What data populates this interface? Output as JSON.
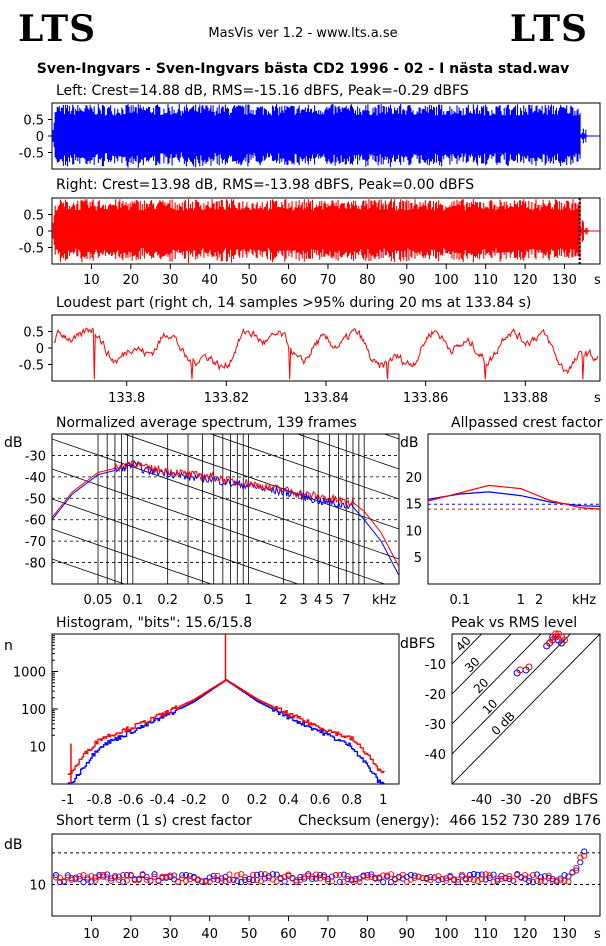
{
  "header": {
    "logo_left": "LTS",
    "logo_right": "LTS",
    "version": "MasVis ver 1.2 - www.lts.a.se",
    "file_title": "Sven-Ingvars - Sven-Ingvars bästa CD2 1996 - 02 - I nästa stad.wav"
  },
  "colors": {
    "left": "#0000ff",
    "right": "#ff0000"
  },
  "chart_data": [
    {
      "type": "line",
      "title": "Left: Crest=14.88 dB, RMS=-15.16 dBFS, Peak=-0.29 dBFS",
      "channel": "left",
      "ylim": [
        -1,
        1
      ],
      "yticks": [
        "0.5",
        "0",
        "-0.5"
      ],
      "xlim": [
        0,
        139
      ],
      "envelope_peak": 0.97
    },
    {
      "type": "line",
      "title": "Right: Crest=13.98 dB, RMS=-13.98 dBFS, Peak=0.00 dBFS",
      "channel": "right",
      "ylim": [
        -1,
        1
      ],
      "yticks": [
        "0.5",
        "0",
        "-0.5"
      ],
      "xlim": [
        0,
        139
      ],
      "xticks": [
        "10",
        "20",
        "30",
        "40",
        "50",
        "60",
        "70",
        "80",
        "90",
        "100",
        "110",
        "120",
        "130"
      ],
      "xunit": "s",
      "loudest_marker_s": 133.84
    },
    {
      "type": "line",
      "title": "Loudest part (right ch, 14 samples >95% during 20 ms at 133.84 s)",
      "ylim": [
        -1,
        1
      ],
      "yticks": [
        "0.5",
        "0",
        "-0.5"
      ],
      "xlim": [
        133.785,
        133.895
      ],
      "xticks": [
        "133.8",
        "133.82",
        "133.84",
        "133.86",
        "133.88"
      ],
      "xunit": "s"
    },
    {
      "type": "line",
      "title": "Normalized average spectrum, 139 frames",
      "ylabel": "dB",
      "xscale": "log",
      "xlim": [
        0.02,
        20
      ],
      "ylim": [
        -90,
        -20
      ],
      "yticks": [
        "-30",
        "-40",
        "-50",
        "-60",
        "-70",
        "-80"
      ],
      "xticks": [
        "0.05",
        "0.1",
        "0.2",
        "0.5",
        "1",
        "2",
        "3",
        "4",
        "5",
        "7"
      ],
      "xunit": "kHz",
      "series": [
        {
          "channel": "left",
          "x": [
            0.02,
            0.03,
            0.05,
            0.07,
            0.09,
            0.1,
            0.13,
            0.2,
            0.3,
            0.5,
            0.7,
            1,
            1.5,
            2,
            3,
            4,
            5,
            6,
            7,
            8,
            10,
            14,
            20
          ],
          "y": [
            -60,
            -48,
            -39,
            -37,
            -35,
            -34,
            -37,
            -38,
            -40,
            -41,
            -43,
            -44,
            -46,
            -47,
            -49,
            -51,
            -52,
            -53,
            -53,
            -54,
            -60,
            -70,
            -86
          ]
        },
        {
          "channel": "right",
          "x": [
            0.02,
            0.03,
            0.05,
            0.07,
            0.09,
            0.1,
            0.13,
            0.2,
            0.3,
            0.5,
            0.7,
            1,
            1.5,
            2,
            3,
            4,
            5,
            6,
            7,
            8,
            10,
            14,
            20
          ],
          "y": [
            -59,
            -47,
            -38,
            -36,
            -34,
            -33,
            -36,
            -37,
            -39,
            -40,
            -42,
            -43,
            -45,
            -46,
            -48,
            -49,
            -50,
            -51,
            -52,
            -52,
            -56,
            -66,
            -82
          ]
        }
      ]
    },
    {
      "type": "line",
      "title": "Allpassed crest factor",
      "ylabel": "dB",
      "xscale": "log",
      "xlim": [
        0.03,
        20
      ],
      "ylim": [
        0,
        28
      ],
      "yticks": [
        "20",
        "15",
        "10",
        "5"
      ],
      "xticks": [
        "0.1",
        "1",
        "2"
      ],
      "xunit": "kHz",
      "series": [
        {
          "channel": "left",
          "x": [
            0.03,
            0.1,
            0.3,
            1,
            3,
            10,
            20
          ],
          "y": [
            15.8,
            16.8,
            17.2,
            16.5,
            15.3,
            14.6,
            14.5
          ]
        },
        {
          "channel": "right",
          "x": [
            0.03,
            0.1,
            0.3,
            1,
            3,
            10,
            20
          ],
          "y": [
            15.5,
            17,
            18.4,
            17.8,
            15.6,
            14.2,
            14.0
          ]
        }
      ],
      "reference_lines": {
        "left": 14.88,
        "right": 13.98
      }
    },
    {
      "type": "line",
      "title": "Histogram, \"bits\": 15.6/15.8",
      "ylabel": "n",
      "yscale": "log",
      "xlim": [
        -1.1,
        1.1
      ],
      "ylim": [
        1,
        10000
      ],
      "yticks": [
        "1000",
        "100",
        "10"
      ],
      "xticks": [
        "-1",
        "-0.8",
        "-0.6",
        "-0.4",
        "-0.2",
        "0",
        "0.2",
        "0.4",
        "0.6",
        "0.8",
        "1"
      ],
      "series": [
        {
          "channel": "left",
          "x": [
            -0.98,
            -0.9,
            -0.8,
            -0.6,
            -0.4,
            -0.2,
            0,
            0.2,
            0.4,
            0.6,
            0.8,
            0.9,
            0.98
          ],
          "y": [
            1,
            3,
            10,
            25,
            60,
            160,
            600,
            160,
            60,
            25,
            10,
            3,
            1
          ]
        },
        {
          "channel": "right",
          "x": [
            -0.98,
            -0.9,
            -0.8,
            -0.6,
            -0.4,
            -0.2,
            0,
            0.2,
            0.4,
            0.6,
            0.8,
            0.9,
            0.98
          ],
          "y": [
            2,
            6,
            16,
            32,
            72,
            180,
            600,
            180,
            72,
            32,
            16,
            6,
            2
          ]
        }
      ]
    },
    {
      "type": "scatter",
      "title": "Peak vs RMS level",
      "ylabel": "dBFS",
      "xlabel": "dBFS",
      "xlim": [
        -50,
        0
      ],
      "ylim": [
        -50,
        0
      ],
      "xticks": [
        "-40",
        "-30",
        "-20"
      ],
      "yticks": [
        "-10",
        "-20",
        "-30",
        "-40"
      ],
      "diagonal_labels": [
        "40",
        "30",
        "20",
        "10",
        "0 dB"
      ],
      "series": [
        {
          "channel": "left",
          "x": [
            -17,
            -16,
            -15,
            -14,
            -18,
            -16,
            -13,
            -28,
            -25
          ],
          "y": [
            -3,
            -2,
            -1,
            -2,
            -4,
            -1,
            -3,
            -13,
            -12
          ]
        },
        {
          "channel": "right",
          "x": [
            -16,
            -15,
            -14,
            -13,
            -17,
            -15,
            -12,
            -27,
            -24
          ],
          "y": [
            -2,
            -1,
            0,
            -1,
            -3,
            0,
            -2,
            -12,
            -11
          ]
        }
      ]
    },
    {
      "type": "scatter",
      "title": "Short term (1 s) crest factor",
      "ylabel": "dB",
      "xlim": [
        0,
        139
      ],
      "ylim": [
        0,
        26
      ],
      "yticks": [
        "10"
      ],
      "xticks": [
        "10",
        "20",
        "30",
        "40",
        "50",
        "60",
        "70",
        "80",
        "90",
        "100",
        "110",
        "120",
        "130"
      ],
      "xunit": "s",
      "dashed_lines": [
        10,
        20
      ],
      "typical_value": 12
    }
  ],
  "checksum": {
    "label": "Checksum (energy):",
    "value": "466 152 730 289 176"
  }
}
